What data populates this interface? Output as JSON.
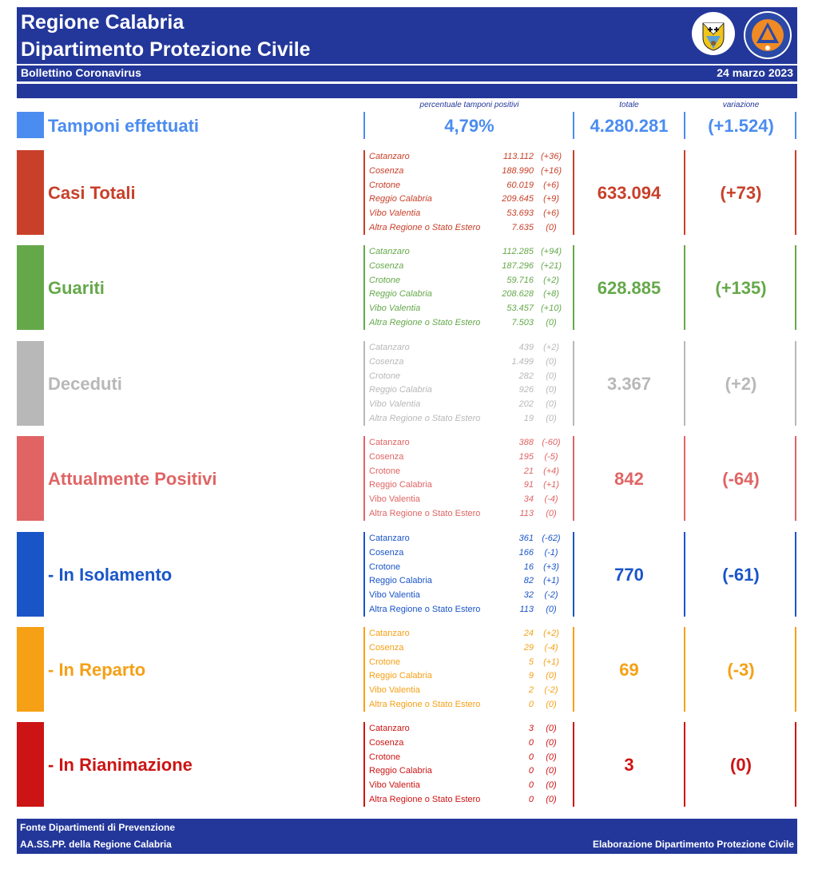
{
  "header": {
    "title1": "Regione Calabria",
    "title2": "Dipartimento Protezione Civile",
    "subtitle": "Bollettino Coronavirus",
    "date": "24 marzo 2023",
    "bg_color": "#23379a"
  },
  "columns": {
    "perc_label": "percentuale tamponi positivi",
    "totale_label": "totale",
    "variazione_label": "variazione"
  },
  "tamponi": {
    "label": "Tamponi effettuati",
    "percent": "4,79%",
    "totale": "4.280.281",
    "variazione": "(+1.524)",
    "color": "#4b8cf0"
  },
  "sections": [
    {
      "label": "Casi Totali",
      "color": "#c8402a",
      "totale": "633.094",
      "variazione": "(+73)",
      "rows": [
        {
          "prov": "Catanzaro",
          "val": "113.112",
          "delta": "(+36)"
        },
        {
          "prov": "Cosenza",
          "val": "188.990",
          "delta": "(+16)"
        },
        {
          "prov": "Crotone",
          "val": "60.019",
          "delta": "(+6)"
        },
        {
          "prov": "Reggio Calabria",
          "val": "209.645",
          "delta": "(+9)"
        },
        {
          "prov": "Vibo Valentia",
          "val": "53.693",
          "delta": "(+6)"
        },
        {
          "prov": "Altra Regione o Stato Estero",
          "val": "7.635",
          "delta": "(0)"
        }
      ]
    },
    {
      "label": "Guariti",
      "color": "#65a84a",
      "totale": "628.885",
      "variazione": "(+135)",
      "rows": [
        {
          "prov": "Catanzaro",
          "val": "112.285",
          "delta": "(+94)"
        },
        {
          "prov": "Cosenza",
          "val": "187.296",
          "delta": "(+21)"
        },
        {
          "prov": "Crotone",
          "val": "59.716",
          "delta": "(+2)"
        },
        {
          "prov": "Reggio Calabria",
          "val": "208.628",
          "delta": "(+8)"
        },
        {
          "prov": "Vibo Valentia",
          "val": "53.457",
          "delta": "(+10)"
        },
        {
          "prov": "Altra Regione o Stato Estero",
          "val": "7.503",
          "delta": "(0)"
        }
      ]
    },
    {
      "label": "Deceduti",
      "color": "#b8b8b8",
      "totale": "3.367",
      "variazione": "(+2)",
      "rows": [
        {
          "prov": "Catanzaro",
          "val": "439",
          "delta": "(+2)"
        },
        {
          "prov": "Cosenza",
          "val": "1.499",
          "delta": "(0)"
        },
        {
          "prov": "Crotone",
          "val": "282",
          "delta": "(0)"
        },
        {
          "prov": "Reggio Calabria",
          "val": "926",
          "delta": "(0)"
        },
        {
          "prov": "Vibo Valentia",
          "val": "202",
          "delta": "(0)"
        },
        {
          "prov": "Altra Regione o Stato Estero",
          "val": "19",
          "delta": "(0)"
        }
      ]
    },
    {
      "label": "Attualmente Positivi",
      "color": "#e06464",
      "totale": "842",
      "variazione": "(-64)",
      "rows": [
        {
          "prov": "Catanzaro",
          "val": "388",
          "delta": "(-60)"
        },
        {
          "prov": "Cosenza",
          "val": "195",
          "delta": "(-5)"
        },
        {
          "prov": "Crotone",
          "val": "21",
          "delta": "(+4)"
        },
        {
          "prov": "Reggio Calabria",
          "val": "91",
          "delta": "(+1)"
        },
        {
          "prov": "Vibo Valentia",
          "val": "34",
          "delta": "(-4)"
        },
        {
          "prov": "Altra Regione o Stato Estero",
          "val": "113",
          "delta": "(0)"
        }
      ]
    },
    {
      "label": " - In Isolamento",
      "color": "#1a55c8",
      "totale": "770",
      "variazione": "(-61)",
      "rows": [
        {
          "prov": "Catanzaro",
          "val": "361",
          "delta": "(-62)"
        },
        {
          "prov": "Cosenza",
          "val": "166",
          "delta": "(-1)"
        },
        {
          "prov": "Crotone",
          "val": "16",
          "delta": "(+3)"
        },
        {
          "prov": "Reggio Calabria",
          "val": "82",
          "delta": "(+1)"
        },
        {
          "prov": "Vibo Valentia",
          "val": "32",
          "delta": "(-2)"
        },
        {
          "prov": "Altra Regione o Stato Estero",
          "val": "113",
          "delta": "(0)"
        }
      ]
    },
    {
      "label": " - In Reparto",
      "color": "#f5a015",
      "totale": "69",
      "variazione": "(-3)",
      "rows": [
        {
          "prov": "Catanzaro",
          "val": "24",
          "delta": "(+2)"
        },
        {
          "prov": "Cosenza",
          "val": "29",
          "delta": "(-4)"
        },
        {
          "prov": "Crotone",
          "val": "5",
          "delta": "(+1)"
        },
        {
          "prov": "Reggio Calabria",
          "val": "9",
          "delta": "(0)"
        },
        {
          "prov": "Vibo Valentia",
          "val": "2",
          "delta": "(-2)"
        },
        {
          "prov": "Altra Regione o Stato Estero",
          "val": "0",
          "delta": "(0)"
        }
      ]
    },
    {
      "label": " - In Rianimazione",
      "color": "#cc1414",
      "totale": "3",
      "variazione": "(0)",
      "rows": [
        {
          "prov": "Catanzaro",
          "val": "3",
          "delta": "(0)"
        },
        {
          "prov": "Cosenza",
          "val": "0",
          "delta": "(0)"
        },
        {
          "prov": "Crotone",
          "val": "0",
          "delta": "(0)"
        },
        {
          "prov": "Reggio Calabria",
          "val": "0",
          "delta": "(0)"
        },
        {
          "prov": "Vibo Valentia",
          "val": "0",
          "delta": "(0)"
        },
        {
          "prov": "Altra Regione o Stato Estero",
          "val": "0",
          "delta": "(0)"
        }
      ]
    }
  ],
  "footer": {
    "line1": "Fonte Dipartimenti di Prevenzione",
    "line2": "AA.SS.PP.  della Regione Calabria",
    "credit": "Elaborazione Dipartimento Protezione Civile"
  }
}
